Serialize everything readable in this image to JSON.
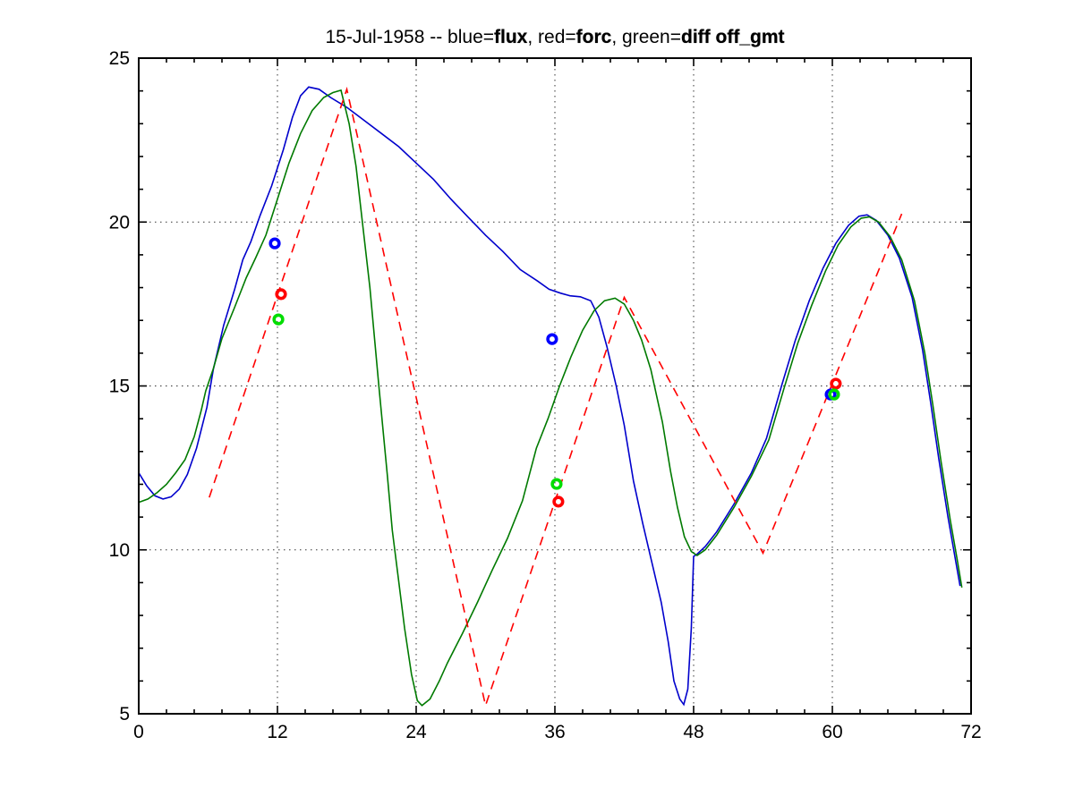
{
  "chart_data": {
    "type": "line",
    "title": "15-Jul-1958 -- blue=flux, red=forc, green=diff off_gmt",
    "title_segments": [
      {
        "text": "15-Jul-1958 -- blue=",
        "bold": false
      },
      {
        "text": "flux",
        "bold": true
      },
      {
        "text": ", red=",
        "bold": false
      },
      {
        "text": "forc",
        "bold": true
      },
      {
        "text": ", green=",
        "bold": false
      },
      {
        "text": "diff off_gmt",
        "bold": true
      }
    ],
    "legend_meaning": {
      "blue": "flux",
      "red": "forc",
      "green": "diff"
    },
    "x_axis": {
      "min": 0,
      "max": 72,
      "major_ticks": [
        0,
        12,
        24,
        36,
        48,
        60,
        72
      ],
      "tick_labels": [
        "0",
        "12",
        "24",
        "36",
        "48",
        "60",
        "72"
      ],
      "minor_divisions_per_interval": 5
    },
    "y_axis": {
      "min": 5,
      "max": 25,
      "major_ticks": [
        5,
        10,
        15,
        20,
        25
      ],
      "tick_labels": [
        "5",
        "10",
        "15",
        "20",
        "25"
      ],
      "minor_divisions_per_interval": 5
    },
    "grid": {
      "x_lines": [
        12,
        24,
        36,
        48,
        60
      ],
      "y_lines": [
        10,
        15,
        20
      ],
      "style": "dotted",
      "color": "#333333"
    },
    "layout": {
      "plot_left": 155,
      "plot_top": 65,
      "plot_right": 1085,
      "plot_bottom": 798,
      "axis_color": "#000000",
      "background": "#ffffff",
      "major_tick_len": 9,
      "minor_tick_len": 5
    },
    "series": [
      {
        "name": "flux",
        "color": "#0000cc",
        "style": "solid",
        "width": 1.6,
        "points": [
          [
            0,
            12.35
          ],
          [
            0.7,
            11.95
          ],
          [
            1.4,
            11.65
          ],
          [
            2.1,
            11.55
          ],
          [
            2.8,
            11.62
          ],
          [
            3.5,
            11.85
          ],
          [
            4.2,
            12.3
          ],
          [
            5.0,
            13.1
          ],
          [
            5.9,
            14.35
          ],
          [
            6.45,
            15.5
          ],
          [
            7.35,
            16.85
          ],
          [
            8.3,
            17.95
          ],
          [
            9.0,
            18.85
          ],
          [
            9.7,
            19.4
          ],
          [
            10.5,
            20.2
          ],
          [
            11.5,
            21.1
          ],
          [
            12.5,
            22.2
          ],
          [
            13.3,
            23.2
          ],
          [
            14.0,
            23.85
          ],
          [
            14.7,
            24.12
          ],
          [
            15.6,
            24.05
          ],
          [
            16.6,
            23.8
          ],
          [
            18.0,
            23.5
          ],
          [
            19.5,
            23.1
          ],
          [
            21.0,
            22.7
          ],
          [
            22.5,
            22.3
          ],
          [
            24.0,
            21.8
          ],
          [
            25.5,
            21.3
          ],
          [
            27.0,
            20.7
          ],
          [
            28.5,
            20.15
          ],
          [
            30.0,
            19.6
          ],
          [
            31.5,
            19.1
          ],
          [
            33.0,
            18.55
          ],
          [
            34.5,
            18.2
          ],
          [
            35.5,
            17.95
          ],
          [
            36.5,
            17.83
          ],
          [
            37.3,
            17.75
          ],
          [
            38.2,
            17.72
          ],
          [
            39.1,
            17.6
          ],
          [
            39.8,
            17.1
          ],
          [
            40.5,
            16.2
          ],
          [
            41.3,
            15.0
          ],
          [
            42.0,
            13.8
          ],
          [
            42.8,
            12.1
          ],
          [
            43.6,
            10.8
          ],
          [
            44.4,
            9.6
          ],
          [
            45.2,
            8.4
          ],
          [
            45.8,
            7.2
          ],
          [
            46.3,
            6.0
          ],
          [
            46.8,
            5.45
          ],
          [
            47.15,
            5.28
          ],
          [
            47.5,
            5.75
          ],
          [
            47.8,
            7.6
          ],
          [
            48.0,
            9.8
          ],
          [
            48.3,
            9.87
          ],
          [
            49.0,
            10.1
          ],
          [
            50.0,
            10.55
          ],
          [
            51.5,
            11.4
          ],
          [
            53.0,
            12.35
          ],
          [
            54.3,
            13.4
          ],
          [
            55.6,
            15.0
          ],
          [
            56.8,
            16.4
          ],
          [
            58.0,
            17.6
          ],
          [
            59.2,
            18.6
          ],
          [
            60.3,
            19.35
          ],
          [
            61.4,
            19.9
          ],
          [
            62.3,
            20.18
          ],
          [
            63.0,
            20.22
          ],
          [
            63.8,
            20.05
          ],
          [
            64.8,
            19.6
          ],
          [
            65.8,
            18.9
          ],
          [
            66.9,
            17.7
          ],
          [
            67.8,
            16.1
          ],
          [
            68.5,
            14.5
          ],
          [
            69.2,
            12.8
          ],
          [
            70.0,
            11.0
          ],
          [
            70.6,
            9.8
          ],
          [
            71.05,
            8.9
          ]
        ]
      },
      {
        "name": "diff",
        "color": "#007a00",
        "style": "solid",
        "width": 1.6,
        "points": [
          [
            0,
            11.45
          ],
          [
            0.8,
            11.55
          ],
          [
            1.6,
            11.75
          ],
          [
            2.4,
            12.0
          ],
          [
            3.2,
            12.35
          ],
          [
            4.0,
            12.75
          ],
          [
            4.8,
            13.45
          ],
          [
            5.4,
            14.25
          ],
          [
            5.8,
            14.85
          ],
          [
            6.45,
            15.52
          ],
          [
            7.2,
            16.45
          ],
          [
            8.3,
            17.4
          ],
          [
            9.3,
            18.3
          ],
          [
            10.1,
            18.9
          ],
          [
            11.0,
            19.6
          ],
          [
            12.0,
            20.7
          ],
          [
            13.0,
            21.8
          ],
          [
            14.0,
            22.7
          ],
          [
            15.0,
            23.4
          ],
          [
            16.0,
            23.8
          ],
          [
            16.8,
            23.95
          ],
          [
            17.5,
            24.02
          ],
          [
            18.2,
            23.0
          ],
          [
            18.8,
            21.7
          ],
          [
            19.35,
            20.0
          ],
          [
            20.0,
            18.0
          ],
          [
            20.77,
            15.0
          ],
          [
            21.5,
            12.3
          ],
          [
            21.93,
            10.6
          ],
          [
            22.4,
            9.3
          ],
          [
            23.0,
            7.6
          ],
          [
            23.6,
            6.2
          ],
          [
            24.1,
            5.4
          ],
          [
            24.5,
            5.25
          ],
          [
            25.2,
            5.45
          ],
          [
            26.0,
            6.0
          ],
          [
            26.7,
            6.55
          ],
          [
            28.0,
            7.45
          ],
          [
            29.3,
            8.4
          ],
          [
            30.6,
            9.4
          ],
          [
            31.9,
            10.35
          ],
          [
            33.2,
            11.5
          ],
          [
            34.4,
            13.1
          ],
          [
            35.4,
            14.0
          ],
          [
            36.4,
            15.0
          ],
          [
            37.4,
            15.9
          ],
          [
            38.4,
            16.7
          ],
          [
            39.4,
            17.3
          ],
          [
            40.3,
            17.6
          ],
          [
            41.2,
            17.68
          ],
          [
            42.0,
            17.5
          ],
          [
            42.8,
            17.0
          ],
          [
            43.5,
            16.4
          ],
          [
            44.3,
            15.5
          ],
          [
            45.3,
            13.9
          ],
          [
            46.0,
            12.4
          ],
          [
            46.6,
            11.3
          ],
          [
            47.2,
            10.4
          ],
          [
            47.8,
            9.95
          ],
          [
            48.3,
            9.83
          ],
          [
            49.0,
            10.0
          ],
          [
            50.0,
            10.45
          ],
          [
            51.5,
            11.3
          ],
          [
            53.0,
            12.25
          ],
          [
            54.5,
            13.35
          ],
          [
            55.8,
            14.9
          ],
          [
            57.0,
            16.3
          ],
          [
            58.2,
            17.45
          ],
          [
            59.4,
            18.5
          ],
          [
            60.5,
            19.3
          ],
          [
            61.6,
            19.85
          ],
          [
            62.5,
            20.12
          ],
          [
            63.2,
            20.16
          ],
          [
            64.0,
            20.0
          ],
          [
            65.0,
            19.55
          ],
          [
            66.0,
            18.85
          ],
          [
            67.1,
            17.6
          ],
          [
            68.0,
            16.0
          ],
          [
            68.7,
            14.4
          ],
          [
            69.4,
            12.7
          ],
          [
            70.2,
            10.9
          ],
          [
            70.8,
            9.7
          ],
          [
            71.2,
            8.85
          ]
        ]
      },
      {
        "name": "forc",
        "color": "#ff0000",
        "style": "dashed",
        "width": 1.6,
        "points": [
          [
            6.1,
            11.6
          ],
          [
            18.0,
            24.05
          ],
          [
            30.0,
            5.25
          ],
          [
            42.0,
            17.7
          ],
          [
            54.0,
            9.9
          ],
          [
            66.0,
            20.25
          ]
        ]
      }
    ],
    "markers": [
      {
        "series": "flux",
        "color": "#0000ff",
        "points": [
          [
            11.77,
            19.35
          ],
          [
            35.76,
            16.43
          ],
          [
            59.85,
            14.74
          ]
        ]
      },
      {
        "series": "forc",
        "color": "#ff0000",
        "points": [
          [
            12.31,
            17.8
          ],
          [
            36.3,
            11.47
          ],
          [
            60.3,
            15.07
          ]
        ]
      },
      {
        "series": "diff",
        "color": "#00dd00",
        "points": [
          [
            12.08,
            17.03
          ],
          [
            36.15,
            12.01
          ],
          [
            60.15,
            14.74
          ]
        ]
      }
    ]
  }
}
